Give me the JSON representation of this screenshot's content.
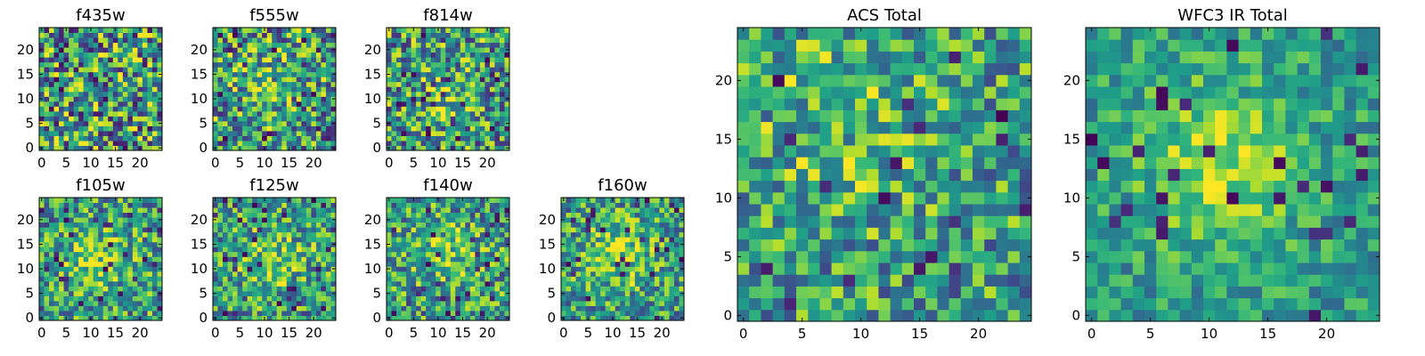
{
  "chart_data": [
    {
      "type": "heatmap",
      "title": "f435w",
      "grid_size": 25,
      "xticks": [
        "0",
        "5",
        "10",
        "15",
        "20"
      ],
      "yticks": [
        "0",
        "5",
        "10",
        "15",
        "20"
      ],
      "colormap": "viridis",
      "seed": 435,
      "blob": {
        "cx": 12,
        "cy": 12,
        "sigma": 5,
        "amp": 0.0
      },
      "noise": 1.0,
      "holes": 0.05
    },
    {
      "type": "heatmap",
      "title": "f555w",
      "grid_size": 25,
      "xticks": [
        "0",
        "5",
        "10",
        "15",
        "20"
      ],
      "yticks": [
        "0",
        "5",
        "10",
        "15",
        "20"
      ],
      "colormap": "viridis",
      "seed": 555,
      "blob": {
        "cx": 9,
        "cy": 16,
        "sigma": 4,
        "amp": 0.25
      },
      "noise": 0.9,
      "holes": 0.04
    },
    {
      "type": "heatmap",
      "title": "f814w",
      "grid_size": 25,
      "xticks": [
        "0",
        "5",
        "10",
        "15",
        "20"
      ],
      "yticks": [
        "0",
        "5",
        "10",
        "15",
        "20"
      ],
      "colormap": "viridis",
      "seed": 814,
      "blob": {
        "cx": 13,
        "cy": 11,
        "sigma": 4,
        "amp": 0.35
      },
      "noise": 0.85,
      "holes": 0.04
    },
    {
      "type": "heatmap",
      "title": "f105w",
      "grid_size": 25,
      "xticks": [
        "0",
        "5",
        "10",
        "15",
        "20"
      ],
      "yticks": [
        "0",
        "5",
        "10",
        "15",
        "20"
      ],
      "colormap": "viridis",
      "seed": 105,
      "blob": {
        "cx": 12,
        "cy": 12,
        "sigma": 4.5,
        "amp": 0.55
      },
      "noise": 0.75,
      "holes": 0.04
    },
    {
      "type": "heatmap",
      "title": "f125w",
      "grid_size": 25,
      "xticks": [
        "0",
        "5",
        "10",
        "15",
        "20"
      ],
      "yticks": [
        "0",
        "5",
        "10",
        "15",
        "20"
      ],
      "colormap": "viridis",
      "seed": 125,
      "blob": {
        "cx": 12,
        "cy": 12,
        "sigma": 4.5,
        "amp": 0.55
      },
      "noise": 0.75,
      "holes": 0.04
    },
    {
      "type": "heatmap",
      "title": "f140w",
      "grid_size": 25,
      "xticks": [
        "0",
        "5",
        "10",
        "15",
        "20"
      ],
      "yticks": [
        "0",
        "5",
        "10",
        "15",
        "20"
      ],
      "colormap": "viridis",
      "seed": 140,
      "blob": {
        "cx": 12,
        "cy": 13,
        "sigma": 4.5,
        "amp": 0.55
      },
      "noise": 0.75,
      "holes": 0.04
    },
    {
      "type": "heatmap",
      "title": "f160w",
      "grid_size": 25,
      "xticks": [
        "0",
        "5",
        "10",
        "15",
        "20"
      ],
      "yticks": [
        "0",
        "5",
        "10",
        "15",
        "20"
      ],
      "colormap": "viridis",
      "seed": 160,
      "blob": {
        "cx": 11,
        "cy": 13,
        "sigma": 5,
        "amp": 0.6
      },
      "noise": 0.7,
      "holes": 0.04
    },
    {
      "type": "heatmap",
      "title": "ACS Total",
      "grid_size": 25,
      "xticks": [
        "0",
        "5",
        "10",
        "15",
        "20"
      ],
      "yticks": [
        "0",
        "5",
        "10",
        "15",
        "20"
      ],
      "colormap": "viridis",
      "seed": 7,
      "blob": {
        "cx": 9,
        "cy": 17,
        "sigma": 6,
        "amp": 0.35
      },
      "noise": 0.7,
      "holes": 0.025
    },
    {
      "type": "heatmap",
      "title": "WFC3 IR Total",
      "grid_size": 25,
      "xticks": [
        "0",
        "5",
        "10",
        "15",
        "20"
      ],
      "yticks": [
        "0",
        "5",
        "10",
        "15",
        "20"
      ],
      "colormap": "viridis",
      "seed": 3,
      "blob": {
        "cx": 11,
        "cy": 13,
        "sigma": 4.5,
        "amp": 0.75
      },
      "noise": 0.45,
      "holes": 0.03
    }
  ]
}
